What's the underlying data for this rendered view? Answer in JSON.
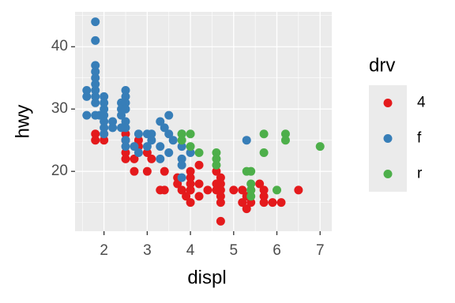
{
  "chart_data": {
    "type": "scatter",
    "xlabel": "displ",
    "ylabel": "hwy",
    "legend_title": "drv",
    "legend_position": "right",
    "xlim": [
      1.33,
      7.27
    ],
    "ylim": [
      10.4,
      45.6
    ],
    "xticks": [
      2,
      3,
      4,
      5,
      6,
      7
    ],
    "yticks": [
      20,
      30,
      40
    ],
    "grid": true,
    "series": [
      {
        "name": "4",
        "color": "#E41A1C",
        "x": [
          1.8,
          1.8,
          2.0,
          2.0,
          2.5,
          2.5,
          2.5,
          2.5,
          2.7,
          2.8,
          2.8,
          2.7,
          3.1,
          3.0,
          3.3,
          3.4,
          3.7,
          3.7,
          4.0,
          4.0,
          4.0,
          4.0,
          4.2,
          4.2,
          4.4,
          4.6,
          4.6,
          4.7,
          4.7,
          4.7,
          4.7,
          4.7,
          5.0,
          5.2,
          5.2,
          5.3,
          5.4,
          5.4,
          5.6,
          5.7,
          5.7,
          5.9,
          6.1,
          6.5,
          3.4,
          3.9,
          4.0,
          4.0,
          4.6,
          4.7,
          5.3,
          5.7,
          4.2,
          3.8,
          3.0
        ],
        "values": [
          26,
          25,
          26,
          25,
          26,
          25,
          23,
          22,
          20,
          25,
          24,
          22,
          22,
          23,
          17,
          17,
          19,
          18,
          17,
          19,
          20,
          18,
          16,
          18,
          17,
          17,
          18,
          12,
          15,
          16,
          17,
          19,
          17,
          17,
          15,
          14,
          15,
          17,
          18,
          17,
          16,
          15,
          15,
          17,
          20,
          16,
          15,
          17,
          20,
          18,
          16,
          15,
          21,
          17,
          20
        ]
      },
      {
        "name": "f",
        "color": "#377EB8",
        "x": [
          1.8,
          1.8,
          1.6,
          1.6,
          1.6,
          1.8,
          1.8,
          1.8,
          1.8,
          1.8,
          1.8,
          1.8,
          1.8,
          1.9,
          2.0,
          2.0,
          2.0,
          2.0,
          2.0,
          2.2,
          2.4,
          2.4,
          2.4,
          2.5,
          2.5,
          2.5,
          2.5,
          2.5,
          2.5,
          2.5,
          2.5,
          2.7,
          2.8,
          2.8,
          3.0,
          3.0,
          3.1,
          3.1,
          3.3,
          3.3,
          3.3,
          3.4,
          3.5,
          3.5,
          3.6,
          3.8,
          3.8,
          3.8,
          3.8,
          3.8,
          5.3,
          4.0,
          3.5,
          2.4,
          2.2,
          2.0,
          2.0
        ],
        "values": [
          44,
          41,
          33,
          32,
          29,
          37,
          36,
          35,
          34,
          33,
          32,
          31,
          29,
          29,
          29,
          30,
          28,
          27,
          26,
          27,
          27,
          30,
          31,
          32,
          33,
          31,
          30,
          28,
          27,
          25,
          24,
          24,
          26,
          23,
          26,
          24,
          26,
          25,
          28,
          24,
          22,
          27,
          26,
          23,
          25,
          26,
          24,
          22,
          21,
          19,
          25,
          23,
          29,
          29,
          28,
          31,
          32
        ]
      },
      {
        "name": "r",
        "color": "#4DAF4A",
        "x": [
          3.8,
          4.0,
          3.8,
          4.0,
          4.2,
          4.6,
          4.6,
          4.6,
          5.3,
          5.4,
          5.4,
          5.4,
          5.4,
          5.7,
          5.7,
          6.2,
          6.2,
          6.0,
          7.0
        ],
        "values": [
          26,
          26,
          25,
          24,
          23,
          23,
          22,
          21,
          20,
          20,
          18,
          17,
          16,
          26,
          23,
          26,
          25,
          17,
          24
        ]
      }
    ]
  }
}
